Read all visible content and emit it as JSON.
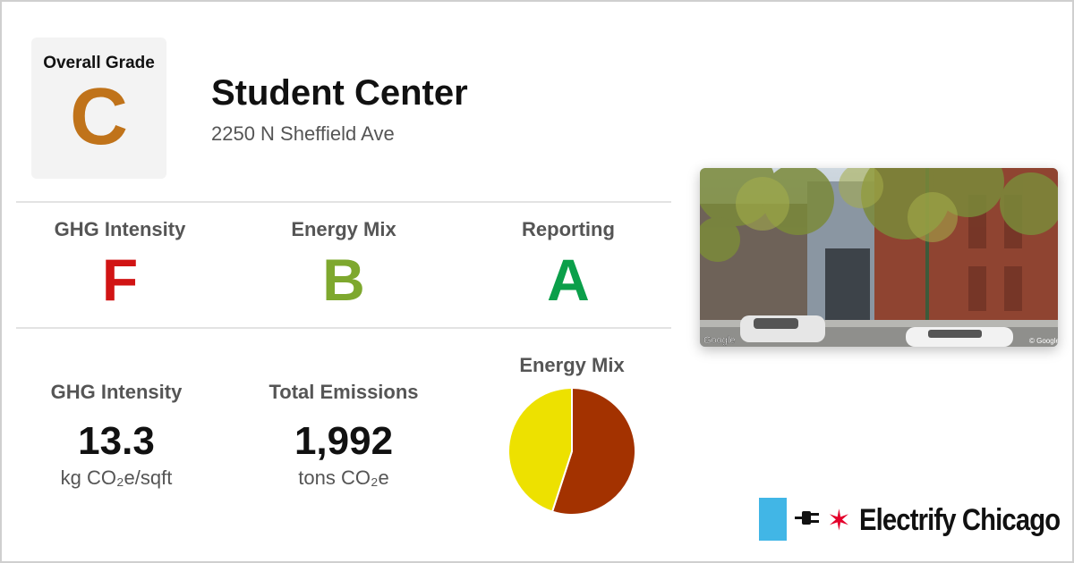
{
  "overall": {
    "label": "Overall Grade",
    "grade": "C",
    "color": "#c0731a"
  },
  "building": {
    "name": "Student Center",
    "address": "2250 N Sheffield Ave"
  },
  "grades": [
    {
      "label": "GHG Intensity",
      "grade": "F",
      "color": "#d11414"
    },
    {
      "label": "Energy Mix",
      "grade": "B",
      "color": "#7ea82e"
    },
    {
      "label": "Reporting",
      "grade": "A",
      "color": "#0b9f4a"
    }
  ],
  "stats": {
    "ghg": {
      "label": "GHG Intensity",
      "value": "13.3",
      "unit": "kg CO₂e/sqft"
    },
    "emissions": {
      "label": "Total Emissions",
      "value": "1,992",
      "unit": "tons CO₂e"
    }
  },
  "energy_mix": {
    "title": "Energy Mix",
    "chart_data": {
      "type": "pie",
      "slices": [
        {
          "value": 55,
          "color": "#a33200"
        },
        {
          "value": 45,
          "color": "#ede100"
        }
      ]
    }
  },
  "photo": {
    "watermark_left": "Google",
    "watermark_right": "© Google"
  },
  "brand": {
    "name": "Electrify Chicago",
    "flag_color": "#41b6e6",
    "star_color": "#e4002b"
  }
}
